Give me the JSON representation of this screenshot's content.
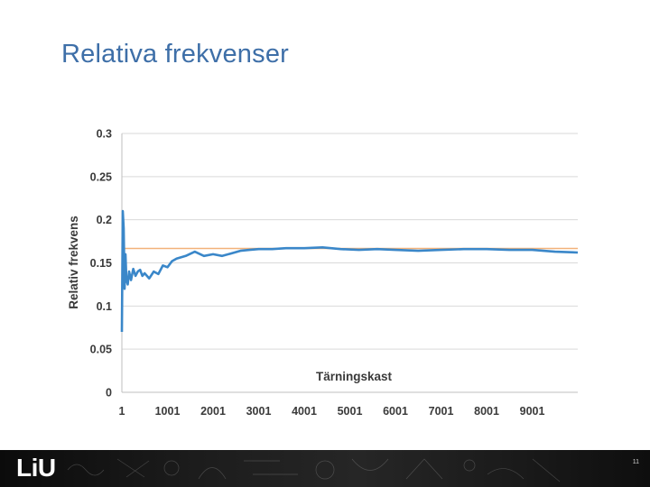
{
  "slide": {
    "title": "Relativa frekvenser",
    "page_number": "11"
  },
  "footer": {
    "logo": "LiU",
    "accent_color": "#1a1a1a"
  },
  "colors": {
    "series": "#3a87c9",
    "reference": "#f2b27a",
    "grid": "#d9d9d9",
    "title": "#3e6fa8"
  },
  "chart_data": {
    "type": "line",
    "title": "",
    "xlabel": "Tärningskast",
    "ylabel": "Relativ frekvens",
    "ylim": [
      0,
      0.3
    ],
    "xlim": [
      1,
      10000
    ],
    "y_ticks": [
      "0",
      "0.05",
      "0.1",
      "0.15",
      "0.2",
      "0.25",
      "0.3"
    ],
    "x_ticks": [
      "1",
      "1001",
      "2001",
      "3001",
      "4001",
      "5001",
      "6001",
      "7001",
      "8001",
      "9001"
    ],
    "grid": true,
    "legend": "none",
    "series": [
      {
        "x": [
          1,
          20,
          40,
          60,
          80,
          100,
          130,
          160,
          200,
          250,
          300,
          350,
          400,
          450,
          500,
          600,
          700,
          800,
          900,
          1000,
          1100,
          1200,
          1400,
          1600,
          1800,
          2000,
          2200,
          2400,
          2600,
          2800,
          3000,
          3300,
          3600,
          4000,
          4400,
          4800,
          5200,
          5600,
          6000,
          6500,
          7000,
          7500,
          8000,
          8500,
          9000,
          9500,
          10000
        ],
        "values": [
          0.07,
          0.21,
          0.19,
          0.12,
          0.16,
          0.13,
          0.125,
          0.14,
          0.13,
          0.143,
          0.135,
          0.14,
          0.142,
          0.135,
          0.138,
          0.132,
          0.14,
          0.137,
          0.147,
          0.145,
          0.152,
          0.155,
          0.158,
          0.163,
          0.158,
          0.16,
          0.158,
          0.161,
          0.164,
          0.165,
          0.166,
          0.166,
          0.167,
          0.167,
          0.168,
          0.166,
          0.165,
          0.166,
          0.165,
          0.164,
          0.165,
          0.166,
          0.166,
          0.165,
          0.165,
          0.163,
          0.162
        ]
      },
      {
        "x": [
          1,
          10000
        ],
        "values": [
          0.1667,
          0.1667
        ]
      }
    ]
  }
}
